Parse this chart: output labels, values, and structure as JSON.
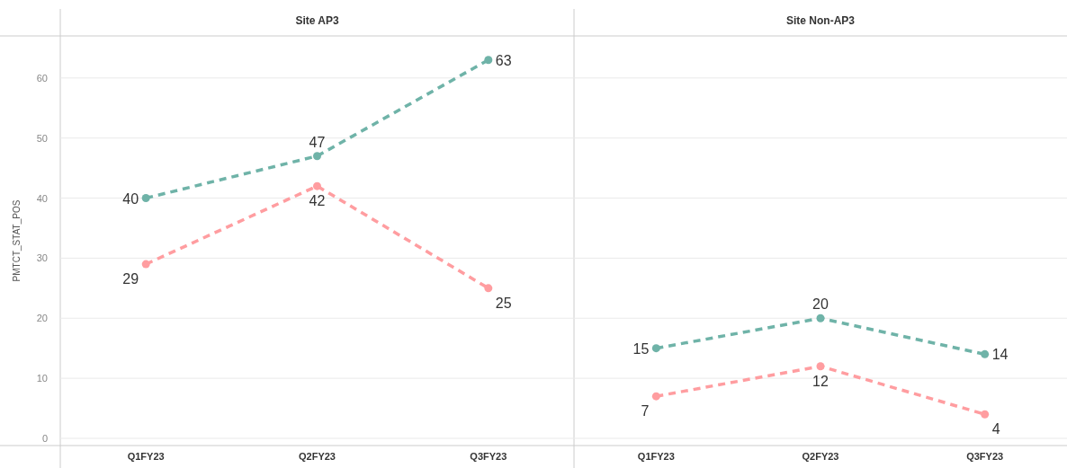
{
  "chart_data": [
    {
      "type": "line",
      "title": "Site AP3",
      "ylabel": "PMTCT_STAT_POS",
      "categories": [
        "Q1FY23",
        "Q2FY23",
        "Q3FY23"
      ],
      "series": [
        {
          "color": "#6fb3a8",
          "values": [
            40,
            47,
            63
          ]
        },
        {
          "color": "#ff9da0",
          "values": [
            29,
            42,
            25
          ]
        }
      ],
      "ylim": [
        -1.2,
        67
      ],
      "yticks": [
        0,
        10,
        20,
        30,
        40,
        50,
        60
      ],
      "grid": "y",
      "marker": "circle",
      "line_style": "dashed",
      "data_labels": true
    },
    {
      "type": "line",
      "title": "Site Non-AP3",
      "categories": [
        "Q1FY23",
        "Q2FY23",
        "Q3FY23"
      ],
      "series": [
        {
          "color": "#6fb3a8",
          "values": [
            15,
            20,
            14
          ]
        },
        {
          "color": "#ff9da0",
          "values": [
            7,
            12,
            4
          ]
        }
      ],
      "ylim": [
        -1.2,
        67
      ],
      "yticks": [
        0,
        10,
        20,
        30,
        40,
        50,
        60
      ],
      "grid": "y",
      "marker": "circle",
      "line_style": "dashed",
      "data_labels": true,
      "tick_labels": "x"
    }
  ]
}
